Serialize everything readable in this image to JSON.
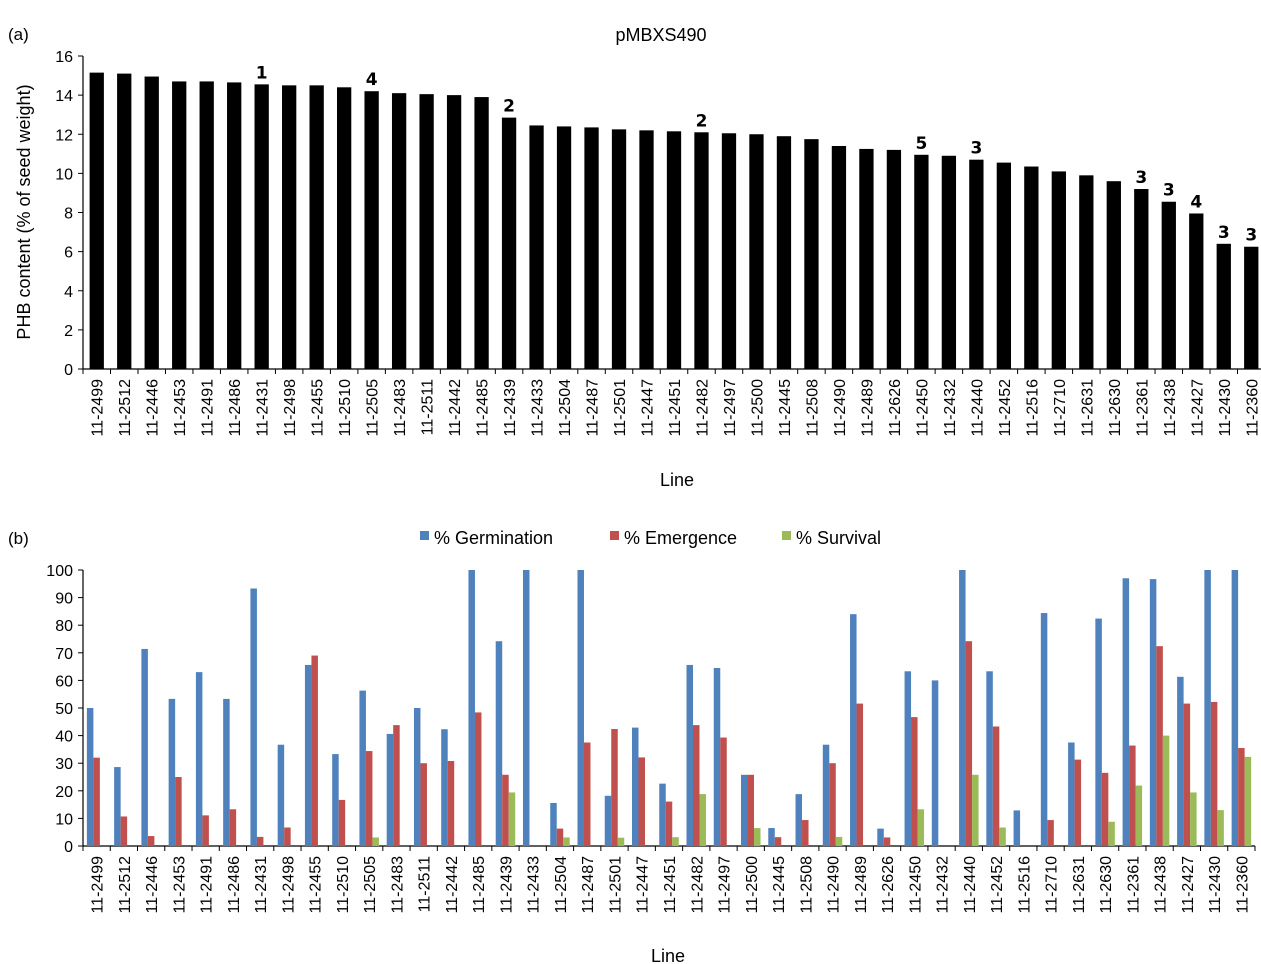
{
  "chart_data": [
    {
      "type": "bar",
      "panel_label": "(a)",
      "title": "pMBXS490",
      "xlabel": "Line",
      "ylabel": "PHB content (% of seed weight)",
      "ylim": [
        0,
        16
      ],
      "yticks": [
        "0",
        "2",
        "4",
        "6",
        "8",
        "10",
        "12",
        "14",
        "16"
      ],
      "grid": false,
      "categories": [
        "11-2499",
        "11-2512",
        "11-2446",
        "11-2453",
        "11-2491",
        "11-2486",
        "11-2431",
        "11-2498",
        "11-2455",
        "11-2510",
        "11-2505",
        "11-2483",
        "11-2511",
        "11-2442",
        "11-2485",
        "11-2439",
        "11-2433",
        "11-2504",
        "11-2487",
        "11-2501",
        "11-2447",
        "11-2451",
        "11-2482",
        "11-2497",
        "11-2500",
        "11-2445",
        "11-2508",
        "11-2490",
        "11-2489",
        "11-2626",
        "11-2450",
        "11-2432",
        "11-2440",
        "11-2452",
        "11-2516",
        "11-2710",
        "11-2631",
        "11-2630",
        "11-2361",
        "11-2438",
        "11-2427",
        "11-2430",
        "11-2360"
      ],
      "series": [
        {
          "color": "#000000",
          "values": [
            15.15,
            15.1,
            14.95,
            14.7,
            14.7,
            14.65,
            14.55,
            14.5,
            14.5,
            14.4,
            14.2,
            14.1,
            14.05,
            14.0,
            13.9,
            12.85,
            12.45,
            12.4,
            12.35,
            12.25,
            12.2,
            12.15,
            12.1,
            12.05,
            12.0,
            11.9,
            11.75,
            11.4,
            11.25,
            11.2,
            10.95,
            10.9,
            10.7,
            10.55,
            10.35,
            10.1,
            9.9,
            9.6,
            9.2,
            8.55,
            7.95,
            6.4,
            6.25
          ]
        }
      ],
      "annotations": [
        {
          "category": "11-2431",
          "text": "1"
        },
        {
          "category": "11-2505",
          "text": "4"
        },
        {
          "category": "11-2439",
          "text": "2"
        },
        {
          "category": "11-2482",
          "text": "2"
        },
        {
          "category": "11-2450",
          "text": "5"
        },
        {
          "category": "11-2440",
          "text": "3"
        },
        {
          "category": "11-2361",
          "text": "3"
        },
        {
          "category": "11-2438",
          "text": "3"
        },
        {
          "category": "11-2427",
          "text": "4"
        },
        {
          "category": "11-2430",
          "text": "3"
        },
        {
          "category": "11-2360",
          "text": "3"
        }
      ]
    },
    {
      "type": "bar",
      "panel_label": "(b)",
      "xlabel": "Line",
      "ylabel": "",
      "ylim": [
        0,
        100
      ],
      "yticks": [
        "0",
        "10",
        "20",
        "30",
        "40",
        "50",
        "60",
        "70",
        "80",
        "90",
        "100"
      ],
      "grid": false,
      "legend_position": "top-center",
      "categories": [
        "11-2499",
        "11-2512",
        "11-2446",
        "11-2453",
        "11-2491",
        "11-2486",
        "11-2431",
        "11-2498",
        "11-2455",
        "11-2510",
        "11-2505",
        "11-2483",
        "11-2511",
        "11-2442",
        "11-2485",
        "11-2439",
        "11-2433",
        "11-2504",
        "11-2487",
        "11-2501",
        "11-2447",
        "11-2451",
        "11-2482",
        "11-2497",
        "11-2500",
        "11-2445",
        "11-2508",
        "11-2490",
        "11-2489",
        "11-2626",
        "11-2450",
        "11-2432",
        "11-2440",
        "11-2452",
        "11-2516",
        "11-2710",
        "11-2631",
        "11-2630",
        "11-2361",
        "11-2438",
        "11-2427",
        "11-2430",
        "11-2360"
      ],
      "series": [
        {
          "name": "% Germination",
          "color": "#4f81bd",
          "values": [
            50,
            28.6,
            71.4,
            53.3,
            63,
            53.3,
            93.3,
            36.7,
            65.6,
            33.3,
            56.3,
            40.6,
            50,
            42.3,
            100,
            74.2,
            100,
            15.6,
            100,
            18.2,
            42.9,
            22.6,
            65.6,
            64.5,
            25.8,
            6.5,
            18.8,
            36.7,
            84,
            6.3,
            63.3,
            60,
            100,
            63.3,
            12.9,
            84.4,
            37.5,
            82.4,
            97,
            96.7,
            61.3,
            100,
            100
          ]
        },
        {
          "name": "% Emergence",
          "color": "#c0504d",
          "values": [
            32,
            10.7,
            3.6,
            25,
            11.1,
            13.3,
            3.3,
            6.7,
            69,
            16.7,
            34.4,
            43.8,
            30,
            30.8,
            48.4,
            25.8,
            0,
            6.3,
            37.5,
            42.4,
            32.1,
            16.1,
            43.8,
            39.3,
            25.8,
            3.2,
            9.4,
            30,
            51.6,
            3.1,
            46.7,
            0,
            74.2,
            43.3,
            0,
            9.4,
            31.3,
            26.5,
            36.4,
            72.4,
            51.6,
            52.2,
            35.5
          ]
        },
        {
          "name": "% Survival",
          "color": "#9bbb59",
          "values": [
            0,
            0,
            0,
            0,
            0,
            0,
            0,
            0,
            0,
            0,
            3.1,
            0,
            0,
            0,
            0,
            19.4,
            0,
            3.1,
            0,
            3,
            0,
            3.2,
            18.8,
            0,
            6.5,
            0,
            0,
            3.3,
            0,
            0,
            13.3,
            0,
            25.8,
            6.7,
            0,
            0,
            0,
            8.8,
            21.9,
            40,
            19.4,
            13,
            32.3
          ]
        }
      ]
    }
  ]
}
